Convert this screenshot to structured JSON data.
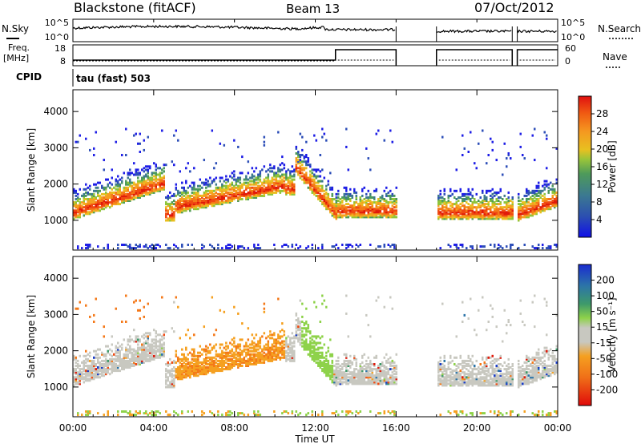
{
  "header": {
    "radar": "Blackstone (fitACF)",
    "beam": "Beam 13",
    "date": "07/Oct/2012"
  },
  "panels": {
    "nsky_label": "N.Sky",
    "nsearch_label": "N.Search",
    "nsky_ticks": [
      "10^5",
      "10^0"
    ],
    "freq_label_1": "Freq.",
    "freq_label_2": "[MHz]",
    "freq_ticks": [
      "18",
      "8"
    ],
    "nave_label": "Nave",
    "nave_ticks": [
      "60",
      "0"
    ],
    "cpid_label": "CPID",
    "cpid_value": "tau (fast) 503"
  },
  "chart_data": [
    {
      "type": "heatmap",
      "title": "Power",
      "ylabel": "Slant Range [km]",
      "xlabel": "Time UT",
      "xlim": [
        "00:00",
        "24:00"
      ],
      "ylim": [
        180,
        4600
      ],
      "ytick_labels": [
        "1000",
        "2000",
        "3000",
        "4000"
      ],
      "colorbar": {
        "label": "Power [dB]",
        "ticks": [
          "4",
          "8",
          "12",
          "16",
          "20",
          "24",
          "28"
        ],
        "colors": [
          "#1f1fe6",
          "#2e4fb8",
          "#3f7a8e",
          "#4e9a5a",
          "#8fc43a",
          "#e8c020",
          "#f5a020",
          "#f47a18",
          "#f04a12",
          "#e01a0a"
        ]
      },
      "data_gaps_ut": [
        [
          "16:00",
          "18:00"
        ],
        [
          "21:45",
          "22:00"
        ]
      ]
    },
    {
      "type": "heatmap",
      "title": "Velocity",
      "ylabel": "Slant Range [km]",
      "xlabel": "Time UT",
      "xlim": [
        "00:00",
        "24:00"
      ],
      "ylim": [
        180,
        4600
      ],
      "ytick_labels": [
        "1000",
        "2000",
        "3000",
        "4000"
      ],
      "colorbar": {
        "label": "Velocity [m s^-1]",
        "ticks": [
          "200",
          "100",
          "50",
          "15",
          "-15",
          "-50",
          "-100",
          "-200"
        ],
        "colors": [
          "#1a3cc8",
          "#2c74a8",
          "#3e9a6a",
          "#8ed24a",
          "#c8c8c0",
          "#f5a020",
          "#f47818",
          "#f04a12",
          "#e01a0a"
        ]
      },
      "x_tick_labels": [
        "00:00",
        "04:00",
        "08:00",
        "12:00",
        "16:00",
        "20:00",
        "00:00"
      ]
    }
  ]
}
